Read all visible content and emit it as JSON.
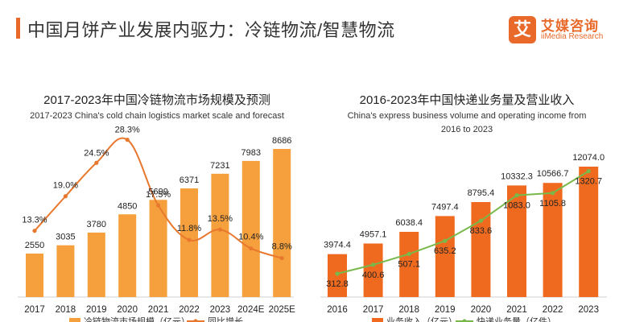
{
  "header": {
    "title": "中国月饼产业发展内驱力：冷链物流/智慧物流",
    "logo_mark": "艾",
    "logo_cn": "艾媒咨询",
    "logo_en": "iiMedia Research"
  },
  "colors": {
    "accent": "#e8692a",
    "bar": "#f5a03c",
    "bar_dark": "#ef6a1f",
    "line": "#e8782e",
    "line_green": "#79b84a"
  },
  "chart_data": [
    {
      "type": "bar",
      "title": "2017-2023年中国冷链物流市场规模及预测",
      "subtitle": "2017-2023 China's cold chain logistics market scale and forecast",
      "categories": [
        "2017",
        "2018",
        "2019",
        "2020",
        "2021",
        "2022",
        "2023",
        "2024E",
        "2025E"
      ],
      "series": [
        {
          "name": "冷链物流市场规模（亿元）",
          "type": "bar",
          "values": [
            2550,
            3035,
            3780,
            4850,
            5699,
            6371,
            7231,
            7983,
            8686
          ],
          "labels": [
            "2550",
            "3035",
            "3780",
            "4850",
            "5699",
            "6371",
            "7231",
            "7983",
            "8686"
          ]
        },
        {
          "name": "同比增长",
          "type": "line",
          "values": [
            13.3,
            19.0,
            24.5,
            28.3,
            17.5,
            11.8,
            13.5,
            10.4,
            8.8
          ],
          "labels": [
            "13.3%",
            "19.0%",
            "24.5%",
            "28.3%",
            "17.5%",
            "11.8%",
            "13.5%",
            "10.4%",
            "8.8%"
          ]
        }
      ],
      "legend": [
        "冷链物流市场规模（亿元）",
        "同比增长"
      ]
    },
    {
      "type": "bar",
      "title": "2016-2023年中国快递业务量及营业收入",
      "subtitle": "China's express business volume and operating income from 2016 to 2023",
      "subtitle_lines": [
        "China's express business volume and operating income from",
        "2016 to 2023"
      ],
      "categories": [
        "2016",
        "2017",
        "2018",
        "2019",
        "2020",
        "2021",
        "2022",
        "2023"
      ],
      "series": [
        {
          "name": "业务收入（亿元）",
          "type": "bar",
          "values": [
            3974.4,
            4957.1,
            6038.4,
            7497.4,
            8795.4,
            10332.3,
            10566.7,
            12074.0
          ],
          "labels": [
            "3974.4",
            "4957.1",
            "6038.4",
            "7497.4",
            "8795.4",
            "10332.3",
            "10566.7",
            "12074.0"
          ]
        },
        {
          "name": "快递业务量（亿件）",
          "type": "line",
          "values": [
            312.8,
            400.6,
            507.1,
            635.2,
            833.6,
            1083.0,
            1105.8,
            1320.7
          ],
          "labels": [
            "312.8",
            "400.6",
            "507.1",
            "635.2",
            "833.6",
            "1083.0",
            "1105.8",
            "1320.7"
          ]
        }
      ],
      "legend": [
        "业务收入（亿元）",
        "快递业务量（亿件）"
      ]
    }
  ]
}
